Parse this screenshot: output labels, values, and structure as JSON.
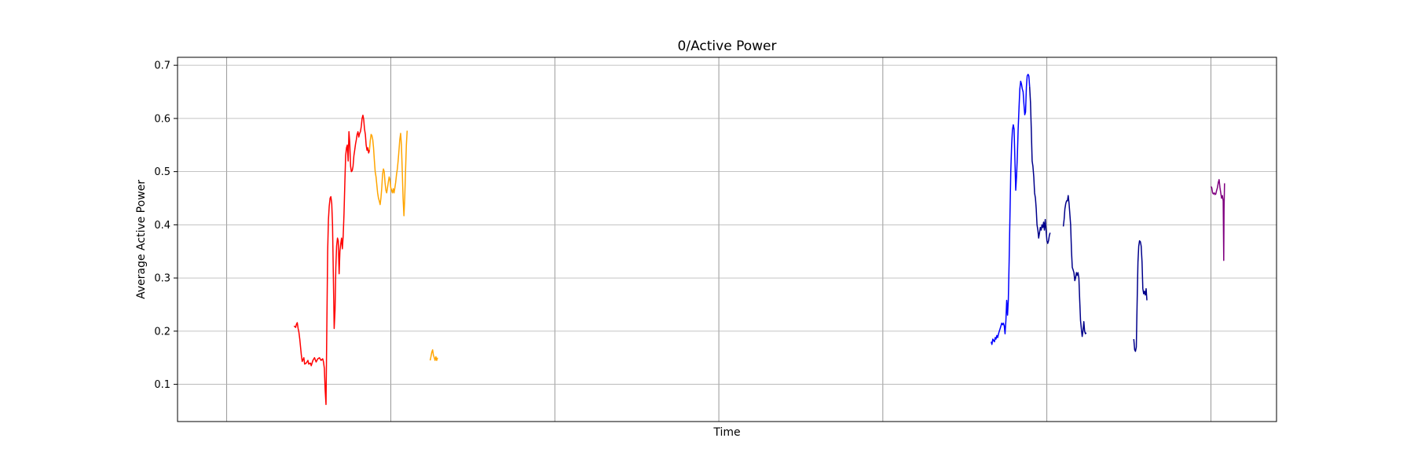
{
  "chart_data": {
    "type": "line",
    "title": "0/Active Power",
    "xlabel": "Time",
    "ylabel": "Average Active Power",
    "xlim": [
      -0.3,
      6.4
    ],
    "ylim": [
      0.03,
      0.715
    ],
    "yticks": [
      0.1,
      0.2,
      0.3,
      0.4,
      0.5,
      0.6,
      0.7
    ],
    "ytick_labels": [
      "0.1",
      "0.2",
      "0.3",
      "0.4",
      "0.5",
      "0.6",
      "0.7"
    ],
    "xticks": [
      0,
      1,
      2,
      3,
      4,
      5,
      6
    ],
    "xtick_labels": [],
    "grid": true,
    "series": [
      {
        "color": "#ff0000",
        "points": [
          [
            0.41,
            0.21
          ],
          [
            0.42,
            0.207
          ],
          [
            0.425,
            0.213
          ],
          [
            0.43,
            0.216
          ],
          [
            0.435,
            0.205
          ],
          [
            0.44,
            0.198
          ],
          [
            0.445,
            0.185
          ],
          [
            0.45,
            0.17
          ],
          [
            0.455,
            0.155
          ],
          [
            0.46,
            0.143
          ],
          [
            0.47,
            0.15
          ],
          [
            0.475,
            0.138
          ],
          [
            0.485,
            0.14
          ],
          [
            0.495,
            0.145
          ],
          [
            0.5,
            0.138
          ],
          [
            0.51,
            0.14
          ],
          [
            0.515,
            0.135
          ],
          [
            0.525,
            0.145
          ],
          [
            0.535,
            0.15
          ],
          [
            0.545,
            0.142
          ],
          [
            0.555,
            0.148
          ],
          [
            0.565,
            0.15
          ],
          [
            0.575,
            0.145
          ],
          [
            0.585,
            0.148
          ],
          [
            0.59,
            0.142
          ],
          [
            0.595,
            0.13
          ],
          [
            0.6,
            0.09
          ],
          [
            0.605,
            0.062
          ],
          [
            0.61,
            0.2
          ],
          [
            0.615,
            0.35
          ],
          [
            0.62,
            0.41
          ],
          [
            0.625,
            0.435
          ],
          [
            0.63,
            0.45
          ],
          [
            0.635,
            0.453
          ],
          [
            0.64,
            0.44
          ],
          [
            0.645,
            0.4
          ],
          [
            0.65,
            0.3
          ],
          [
            0.655,
            0.205
          ],
          [
            0.66,
            0.24
          ],
          [
            0.665,
            0.32
          ],
          [
            0.67,
            0.36
          ],
          [
            0.675,
            0.375
          ],
          [
            0.68,
            0.37
          ],
          [
            0.685,
            0.308
          ],
          [
            0.69,
            0.35
          ],
          [
            0.695,
            0.365
          ],
          [
            0.7,
            0.375
          ],
          [
            0.705,
            0.355
          ],
          [
            0.71,
            0.38
          ],
          [
            0.715,
            0.42
          ],
          [
            0.72,
            0.48
          ],
          [
            0.725,
            0.53
          ],
          [
            0.73,
            0.545
          ],
          [
            0.735,
            0.55
          ],
          [
            0.74,
            0.52
          ],
          [
            0.745,
            0.575
          ],
          [
            0.75,
            0.555
          ],
          [
            0.755,
            0.51
          ],
          [
            0.76,
            0.5
          ],
          [
            0.765,
            0.502
          ],
          [
            0.77,
            0.51
          ],
          [
            0.775,
            0.53
          ],
          [
            0.78,
            0.54
          ],
          [
            0.785,
            0.552
          ],
          [
            0.79,
            0.56
          ],
          [
            0.795,
            0.57
          ],
          [
            0.8,
            0.575
          ],
          [
            0.805,
            0.565
          ],
          [
            0.81,
            0.572
          ],
          [
            0.815,
            0.575
          ],
          [
            0.82,
            0.585
          ],
          [
            0.825,
            0.6
          ],
          [
            0.83,
            0.606
          ],
          [
            0.835,
            0.598
          ],
          [
            0.84,
            0.58
          ],
          [
            0.845,
            0.57
          ],
          [
            0.85,
            0.55
          ],
          [
            0.855,
            0.54
          ],
          [
            0.86,
            0.545
          ],
          [
            0.865,
            0.535
          ],
          [
            0.87,
            0.54
          ]
        ]
      },
      {
        "color": "#ffa500",
        "points": [
          [
            0.87,
            0.54
          ],
          [
            0.875,
            0.558
          ],
          [
            0.88,
            0.57
          ],
          [
            0.885,
            0.568
          ],
          [
            0.89,
            0.56
          ],
          [
            0.895,
            0.545
          ],
          [
            0.9,
            0.52
          ],
          [
            0.905,
            0.5
          ],
          [
            0.91,
            0.49
          ],
          [
            0.915,
            0.475
          ],
          [
            0.92,
            0.46
          ],
          [
            0.925,
            0.45
          ],
          [
            0.93,
            0.445
          ],
          [
            0.935,
            0.438
          ],
          [
            0.94,
            0.45
          ],
          [
            0.945,
            0.47
          ],
          [
            0.95,
            0.495
          ],
          [
            0.955,
            0.505
          ],
          [
            0.96,
            0.5
          ],
          [
            0.965,
            0.48
          ],
          [
            0.97,
            0.465
          ],
          [
            0.975,
            0.46
          ],
          [
            0.98,
            0.47
          ],
          [
            0.985,
            0.48
          ],
          [
            0.99,
            0.49
          ],
          [
            0.995,
            0.485
          ],
          [
            1.0,
            0.47
          ],
          [
            1.005,
            0.465
          ],
          [
            1.01,
            0.46
          ],
          [
            1.015,
            0.468
          ],
          [
            1.02,
            0.46
          ],
          [
            1.025,
            0.47
          ],
          [
            1.03,
            0.48
          ],
          [
            1.035,
            0.495
          ],
          [
            1.04,
            0.505
          ],
          [
            1.045,
            0.52
          ],
          [
            1.05,
            0.54
          ],
          [
            1.055,
            0.56
          ],
          [
            1.06,
            0.572
          ],
          [
            1.065,
            0.55
          ],
          [
            1.07,
            0.5
          ],
          [
            1.075,
            0.45
          ],
          [
            1.08,
            0.417
          ],
          [
            1.085,
            0.45
          ],
          [
            1.09,
            0.5
          ],
          [
            1.095,
            0.55
          ],
          [
            1.1,
            0.577
          ]
        ]
      },
      {
        "color": "#ffa500",
        "points": [
          [
            1.24,
            0.145
          ],
          [
            1.245,
            0.152
          ],
          [
            1.25,
            0.16
          ],
          [
            1.255,
            0.165
          ],
          [
            1.26,
            0.155
          ],
          [
            1.265,
            0.15
          ],
          [
            1.27,
            0.145
          ],
          [
            1.275,
            0.152
          ],
          [
            1.28,
            0.145
          ],
          [
            1.285,
            0.15
          ]
        ]
      },
      {
        "color": "#0000ff",
        "points": [
          [
            4.66,
            0.18
          ],
          [
            4.665,
            0.175
          ],
          [
            4.67,
            0.185
          ],
          [
            4.68,
            0.18
          ],
          [
            4.685,
            0.188
          ],
          [
            4.69,
            0.185
          ],
          [
            4.695,
            0.192
          ],
          [
            4.7,
            0.188
          ],
          [
            4.705,
            0.195
          ],
          [
            4.71,
            0.2
          ],
          [
            4.715,
            0.205
          ],
          [
            4.72,
            0.21
          ],
          [
            4.725,
            0.215
          ],
          [
            4.73,
            0.212
          ],
          [
            4.735,
            0.215
          ],
          [
            4.74,
            0.21
          ],
          [
            4.745,
            0.195
          ],
          [
            4.75,
            0.22
          ],
          [
            4.755,
            0.258
          ],
          [
            4.76,
            0.23
          ],
          [
            4.765,
            0.26
          ],
          [
            4.77,
            0.33
          ],
          [
            4.775,
            0.42
          ],
          [
            4.78,
            0.5
          ],
          [
            4.785,
            0.55
          ],
          [
            4.79,
            0.578
          ],
          [
            4.795,
            0.588
          ],
          [
            4.8,
            0.58
          ],
          [
            4.805,
            0.52
          ],
          [
            4.81,
            0.465
          ],
          [
            4.815,
            0.49
          ],
          [
            4.82,
            0.53
          ],
          [
            4.825,
            0.58
          ],
          [
            4.83,
            0.62
          ],
          [
            4.835,
            0.655
          ],
          [
            4.84,
            0.67
          ],
          [
            4.845,
            0.665
          ],
          [
            4.85,
            0.655
          ],
          [
            4.855,
            0.65
          ],
          [
            4.86,
            0.628
          ],
          [
            4.865,
            0.607
          ],
          [
            4.87,
            0.612
          ],
          [
            4.875,
            0.66
          ],
          [
            4.88,
            0.68
          ],
          [
            4.885,
            0.683
          ],
          [
            4.89,
            0.68
          ],
          [
            4.895,
            0.66
          ]
        ]
      },
      {
        "color": "#00008b",
        "points": [
          [
            4.895,
            0.66
          ],
          [
            4.9,
            0.63
          ],
          [
            4.905,
            0.58
          ],
          [
            4.91,
            0.52
          ],
          [
            4.915,
            0.51
          ],
          [
            4.92,
            0.49
          ],
          [
            4.925,
            0.46
          ],
          [
            4.93,
            0.45
          ],
          [
            4.935,
            0.43
          ],
          [
            4.94,
            0.4
          ],
          [
            4.945,
            0.39
          ],
          [
            4.95,
            0.375
          ],
          [
            4.955,
            0.385
          ],
          [
            4.96,
            0.395
          ],
          [
            4.965,
            0.39
          ],
          [
            4.97,
            0.4
          ],
          [
            4.975,
            0.395
          ],
          [
            4.98,
            0.405
          ],
          [
            4.985,
            0.39
          ],
          [
            4.99,
            0.41
          ],
          [
            4.995,
            0.39
          ],
          [
            5.0,
            0.37
          ],
          [
            5.005,
            0.365
          ],
          [
            5.01,
            0.37
          ],
          [
            5.015,
            0.38
          ],
          [
            5.02,
            0.385
          ]
        ]
      },
      {
        "color": "#00008b",
        "points": [
          [
            5.1,
            0.397
          ],
          [
            5.105,
            0.41
          ],
          [
            5.11,
            0.43
          ],
          [
            5.115,
            0.44
          ],
          [
            5.12,
            0.445
          ],
          [
            5.125,
            0.445
          ],
          [
            5.13,
            0.455
          ],
          [
            5.135,
            0.44
          ],
          [
            5.14,
            0.42
          ],
          [
            5.145,
            0.4
          ],
          [
            5.15,
            0.35
          ],
          [
            5.155,
            0.32
          ],
          [
            5.16,
            0.315
          ],
          [
            5.165,
            0.31
          ],
          [
            5.17,
            0.295
          ],
          [
            5.175,
            0.3
          ],
          [
            5.18,
            0.31
          ],
          [
            5.185,
            0.305
          ],
          [
            5.19,
            0.31
          ],
          [
            5.195,
            0.3
          ],
          [
            5.2,
            0.26
          ],
          [
            5.205,
            0.22
          ],
          [
            5.21,
            0.205
          ],
          [
            5.215,
            0.19
          ],
          [
            5.22,
            0.2
          ],
          [
            5.225,
            0.218
          ],
          [
            5.23,
            0.2
          ],
          [
            5.235,
            0.195
          ],
          [
            5.24,
            0.197
          ]
        ]
      },
      {
        "color": "#00008b",
        "points": [
          [
            5.53,
            0.185
          ],
          [
            5.535,
            0.165
          ],
          [
            5.54,
            0.162
          ],
          [
            5.545,
            0.17
          ],
          [
            5.55,
            0.25
          ],
          [
            5.555,
            0.33
          ],
          [
            5.56,
            0.36
          ],
          [
            5.565,
            0.37
          ],
          [
            5.57,
            0.368
          ],
          [
            5.575,
            0.36
          ],
          [
            5.58,
            0.33
          ],
          [
            5.585,
            0.28
          ],
          [
            5.59,
            0.27
          ],
          [
            5.595,
            0.275
          ],
          [
            5.6,
            0.268
          ],
          [
            5.605,
            0.28
          ],
          [
            5.61,
            0.258
          ]
        ]
      },
      {
        "color": "#800080",
        "points": [
          [
            6.0,
            0.472
          ],
          [
            6.005,
            0.47
          ],
          [
            6.01,
            0.46
          ],
          [
            6.015,
            0.458
          ],
          [
            6.02,
            0.46
          ],
          [
            6.025,
            0.457
          ],
          [
            6.03,
            0.458
          ],
          [
            6.035,
            0.465
          ],
          [
            6.04,
            0.47
          ],
          [
            6.045,
            0.48
          ],
          [
            6.05,
            0.485
          ],
          [
            6.055,
            0.47
          ],
          [
            6.06,
            0.46
          ],
          [
            6.065,
            0.45
          ],
          [
            6.07,
            0.455
          ],
          [
            6.075,
            0.445
          ],
          [
            6.078,
            0.333
          ],
          [
            6.08,
            0.43
          ],
          [
            6.083,
            0.478
          ]
        ]
      }
    ]
  }
}
